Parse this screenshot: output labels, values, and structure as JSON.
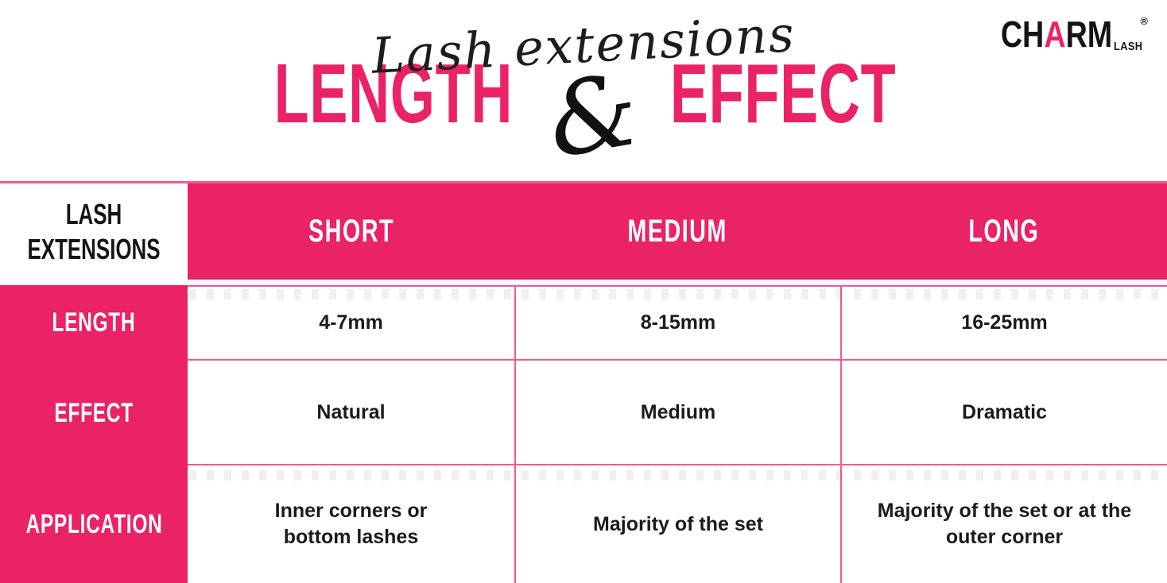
{
  "colors": {
    "brand_pink": "#E92365",
    "grid_line_pink": "#F15A8C",
    "ink_black": "#1B1B1B",
    "white": "#FFFFFF"
  },
  "logo": {
    "prefix": "CH",
    "accent_letter": "A",
    "suffix": "RM",
    "subtext": "LASH",
    "registered_mark": "®"
  },
  "title": {
    "script": "Lash extensions",
    "word_left": "LENGTH",
    "ampersand": "&",
    "word_right": "EFFECT"
  },
  "table": {
    "corner_header": {
      "line1": "LASH",
      "line2": "EXTENSIONS"
    },
    "column_headers": [
      "SHORT",
      "MEDIUM",
      "LONG"
    ],
    "row_headers": [
      "LENGTH",
      "EFFECT",
      "APPLICATION"
    ],
    "cells": [
      [
        "4-7mm",
        "8-15mm",
        "16-25mm"
      ],
      [
        "Natural",
        "Medium",
        "Dramatic"
      ],
      [
        "Inner corners or bottom lashes",
        "Majority of the set",
        "Majority of the set or at the outer corner"
      ]
    ]
  },
  "chart_data": {
    "type": "table",
    "title": "Lash extensions LENGTH & EFFECT",
    "columns": [
      "LASH EXTENSIONS",
      "SHORT",
      "MEDIUM",
      "LONG"
    ],
    "rows": [
      [
        "LENGTH",
        "4-7mm",
        "8-15mm",
        "16-25mm"
      ],
      [
        "EFFECT",
        "Natural",
        "Medium",
        "Dramatic"
      ],
      [
        "APPLICATION",
        "Inner corners or bottom lashes",
        "Majority of the set",
        "Majority of the set or at the outer corner"
      ]
    ]
  }
}
